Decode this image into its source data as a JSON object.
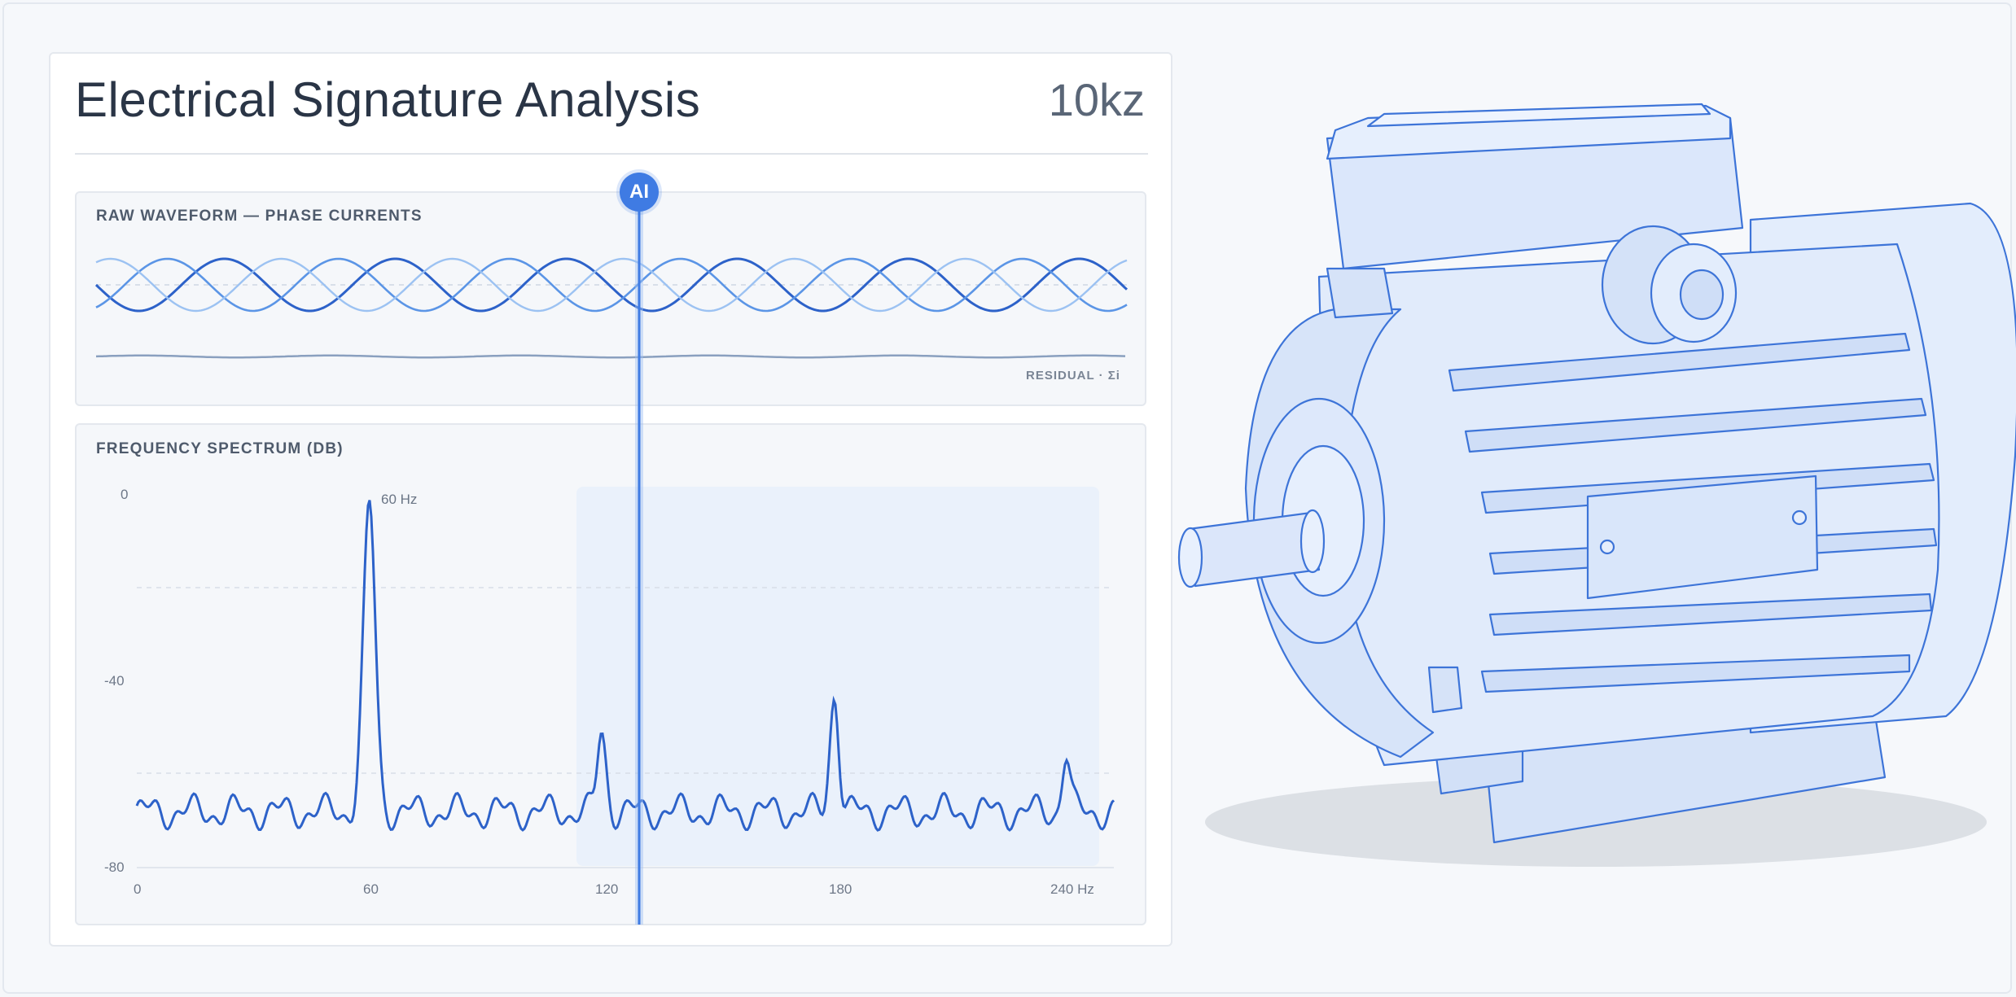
{
  "header": {
    "title": "Electrical Signature Analysis",
    "sample_rate": "10kz"
  },
  "waveform": {
    "label": "RAW WAVEFORM — PHASE CURRENTS",
    "residual_label": "RESIDUAL · Σi"
  },
  "spectrum": {
    "label": "FREQUENCY SPECTRUM (DB)",
    "peak_label": "60 Hz",
    "y_ticks": [
      "0",
      "-40",
      "-80"
    ],
    "x_ticks": [
      "0",
      "60",
      "120",
      "180",
      "240 Hz"
    ]
  },
  "marker": {
    "badge": "AI"
  },
  "colors": {
    "accent": "#3f7be3",
    "phase_a": "#2d62c9",
    "phase_b": "#5b95e6",
    "phase_c": "#9cc2f2",
    "highlight": "#eaf1fb"
  },
  "chart_data": [
    {
      "type": "line",
      "title": "RAW WAVEFORM — PHASE CURRENTS",
      "series": [
        {
          "name": "",
          "description": "three sinusoidal phase currents, 120° apart"
        },
        {
          "name": "RESIDUAL · Σi",
          "description": "near-flat residual"
        }
      ]
    },
    {
      "type": "line",
      "title": "FREQUENCY SPECTRUM (DB)",
      "xlabel": "Hz",
      "x_ticks": [
        0,
        60,
        120,
        180,
        240
      ],
      "ylim": [
        -80,
        0
      ],
      "y_ticks": [
        0,
        -40,
        -80
      ],
      "peaks": [
        {
          "x": 60,
          "y": -1
        },
        {
          "x": 120,
          "y": -51
        },
        {
          "x": 180,
          "y": -44
        },
        {
          "x": 240,
          "y": -57
        }
      ],
      "noise_floor": -68
    }
  ],
  "illustration": {
    "name": "electric-motor",
    "style": "blue line drawing"
  }
}
